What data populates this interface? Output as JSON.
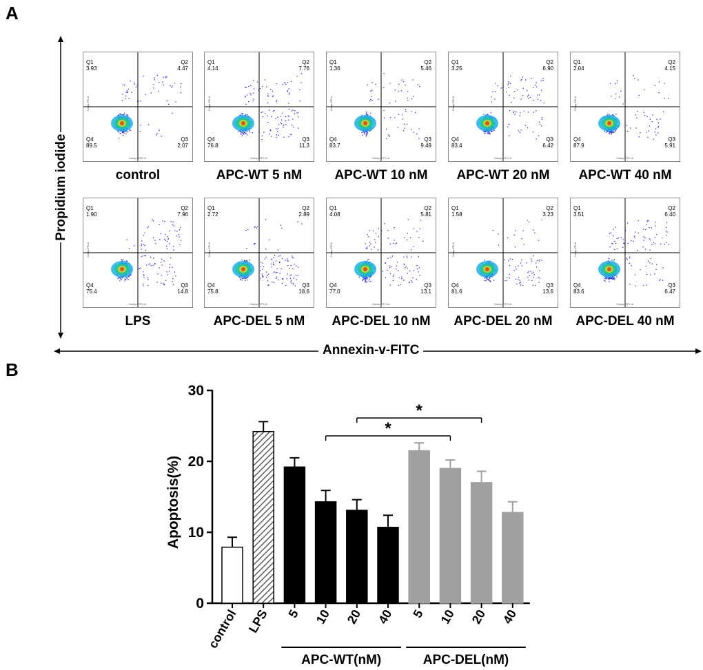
{
  "panel_a": {
    "letter": "A",
    "y_axis_label": "Propidium iodide",
    "x_axis_label": "Annexin-v-FITC",
    "plot_x_axis": "Comp-FITC-A",
    "plot_y_axis": "Comp-PE-A",
    "plots": [
      {
        "condition": "control",
        "q1_label": "Q1",
        "q1": "3.93",
        "q2_label": "Q2",
        "q2": "4.47",
        "q3_label": "Q3",
        "q3": "2.07",
        "q4_label": "Q4",
        "q4": "89.5"
      },
      {
        "condition": "APC-WT 5 nM",
        "q1_label": "Q1",
        "q1": "4.14",
        "q2_label": "Q2",
        "q2": "7.76",
        "q3_label": "Q3",
        "q3": "11.3",
        "q4_label": "Q4",
        "q4": "76.8"
      },
      {
        "condition": "APC-WT 10 nM",
        "q1_label": "Q1",
        "q1": "1.36",
        "q2_label": "Q2",
        "q2": "5.46",
        "q3_label": "Q3",
        "q3": "9.49",
        "q4_label": "Q4",
        "q4": "83.7"
      },
      {
        "condition": "APC-WT 20 nM",
        "q1_label": "Q1",
        "q1": "3.25",
        "q2_label": "Q2",
        "q2": "6.90",
        "q3_label": "Q3",
        "q3": "6.42",
        "q4_label": "Q4",
        "q4": "83.4"
      },
      {
        "condition": "APC-WT 40 nM",
        "q1_label": "Q1",
        "q1": "2.04",
        "q2_label": "Q2",
        "q2": "4.15",
        "q3_label": "Q3",
        "q3": "5.91",
        "q4_label": "Q4",
        "q4": "87.9"
      },
      {
        "condition": "LPS",
        "q1_label": "Q1",
        "q1": "1.90",
        "q2_label": "Q2",
        "q2": "7.96",
        "q3_label": "Q3",
        "q3": "14.8",
        "q4_label": "Q4",
        "q4": "75.4"
      },
      {
        "condition": "APC-DEL 5 nM",
        "q1_label": "Q1",
        "q1": "2.72",
        "q2_label": "Q2",
        "q2": "2.89",
        "q3_label": "Q3",
        "q3": "18.6",
        "q4_label": "Q4",
        "q4": "75.8"
      },
      {
        "condition": "APC-DEL 10 nM",
        "q1_label": "Q1",
        "q1": "4.08",
        "q2_label": "Q2",
        "q2": "5.81",
        "q3_label": "Q3",
        "q3": "13.1",
        "q4_label": "Q4",
        "q4": "77.0"
      },
      {
        "condition": "APC-DEL 20 nM",
        "q1_label": "Q1",
        "q1": "1.58",
        "q2_label": "Q2",
        "q2": "3.23",
        "q3_label": "Q3",
        "q3": "13.6",
        "q4_label": "Q4",
        "q4": "81.6"
      },
      {
        "condition": "APC-DEL 40 nM",
        "q1_label": "Q1",
        "q1": "3.51",
        "q2_label": "Q2",
        "q2": "6.40",
        "q3_label": "Q3",
        "q3": "6.47",
        "q4_label": "Q4",
        "q4": "83.6"
      }
    ]
  },
  "panel_b": {
    "letter": "B",
    "group_labels": [
      "APC-WT(nM)",
      "APC-DEL(nM)"
    ],
    "significance_marker": "*"
  },
  "chart_data": {
    "type": "bar",
    "title": "",
    "xlabel": "",
    "ylabel": "Apoptosis(%)",
    "ylim": [
      0,
      30
    ],
    "yticks": [
      0,
      10,
      20,
      30
    ],
    "categories": [
      "control",
      "LPS",
      "5",
      "10",
      "20",
      "40",
      "5",
      "10",
      "20",
      "40"
    ],
    "values": [
      7.9,
      24.2,
      19.2,
      14.3,
      13.1,
      10.7,
      21.5,
      19.0,
      17.0,
      12.8
    ],
    "errors": [
      1.4,
      1.4,
      1.3,
      1.6,
      1.5,
      1.7,
      1.1,
      1.2,
      1.6,
      1.5
    ],
    "bar_styles": [
      "white",
      "hatched",
      "black",
      "black",
      "black",
      "black",
      "gray",
      "gray",
      "gray",
      "gray"
    ],
    "colors": {
      "white": "#ffffff",
      "hatched": "#c8c8c8",
      "black": "#000000",
      "gray": "#a0a0a0"
    },
    "significance": [
      {
        "from": 3,
        "to": 7,
        "label": "*"
      },
      {
        "from": 4,
        "to": 8,
        "label": "*"
      }
    ]
  }
}
